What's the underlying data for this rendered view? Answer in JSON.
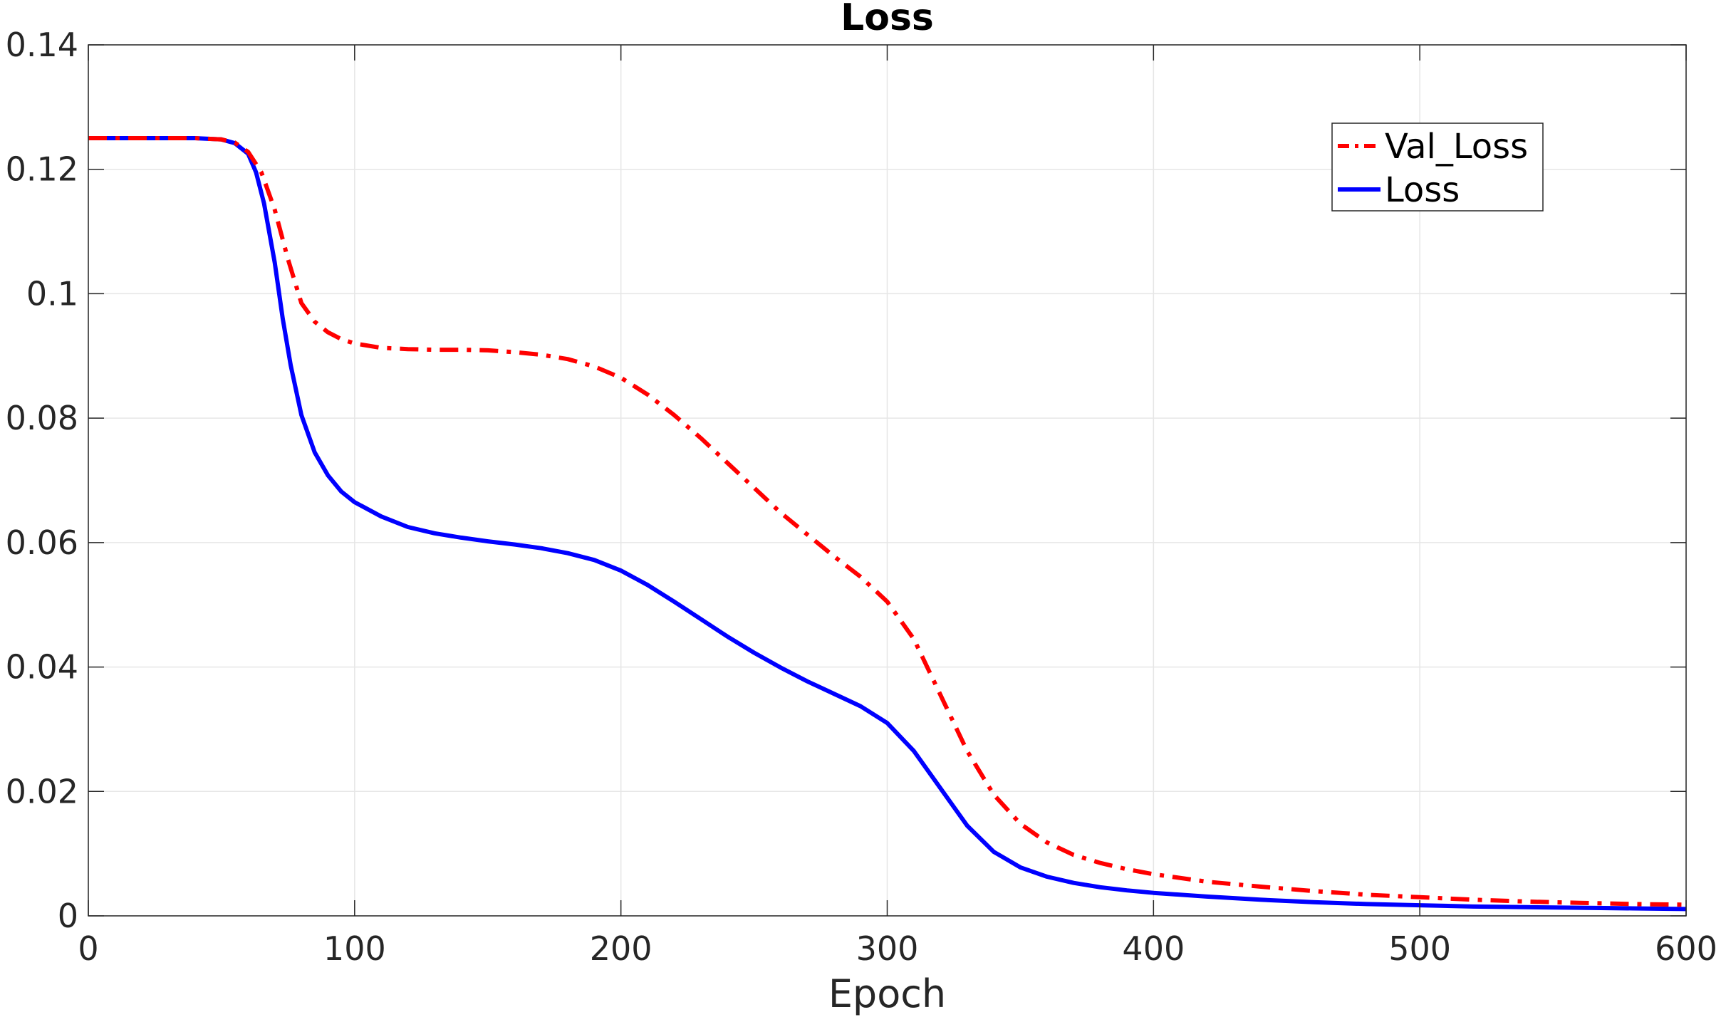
{
  "chart_data": {
    "type": "line",
    "title": "Loss",
    "xlabel": "Epoch",
    "ylabel": "",
    "xlim": [
      0,
      600
    ],
    "ylim": [
      0,
      0.14
    ],
    "xticks": [
      0,
      100,
      200,
      300,
      400,
      500,
      600
    ],
    "xtick_labels": [
      "0",
      "100",
      "200",
      "300",
      "400",
      "500",
      "600"
    ],
    "yticks": [
      0,
      0.02,
      0.04,
      0.06,
      0.08,
      0.1,
      0.12,
      0.14
    ],
    "ytick_labels": [
      "0",
      "0.02",
      "0.04",
      "0.06",
      "0.08",
      "0.1",
      "0.12",
      "0.14"
    ],
    "grid": true,
    "legend_position": "top-right",
    "series": [
      {
        "name": "Val_Loss",
        "color": "#ff0000",
        "line_style": "dash-dot",
        "x": [
          0,
          20,
          40,
          50,
          55,
          60,
          65,
          70,
          75,
          80,
          85,
          90,
          95,
          100,
          110,
          120,
          130,
          140,
          150,
          160,
          170,
          180,
          190,
          200,
          210,
          220,
          230,
          240,
          250,
          260,
          270,
          280,
          290,
          300,
          310,
          320,
          330,
          340,
          350,
          360,
          370,
          380,
          390,
          400,
          420,
          440,
          460,
          480,
          500,
          520,
          540,
          560,
          580,
          600
        ],
        "y": [
          0.125,
          0.125,
          0.125,
          0.1248,
          0.1243,
          0.1228,
          0.1195,
          0.1135,
          0.1055,
          0.0985,
          0.0955,
          0.0938,
          0.0927,
          0.092,
          0.0913,
          0.0911,
          0.091,
          0.091,
          0.0909,
          0.0906,
          0.0902,
          0.0895,
          0.0883,
          0.0865,
          0.0838,
          0.0805,
          0.0768,
          0.0728,
          0.0688,
          0.0648,
          0.0613,
          0.0578,
          0.0545,
          0.0505,
          0.0445,
          0.0355,
          0.0265,
          0.0195,
          0.0148,
          0.0118,
          0.0098,
          0.0085,
          0.0075,
          0.0067,
          0.0055,
          0.0047,
          0.004,
          0.0034,
          0.003,
          0.0026,
          0.0023,
          0.0021,
          0.0019,
          0.0018
        ]
      },
      {
        "name": "Loss",
        "color": "#0000ff",
        "line_style": "solid",
        "x": [
          0,
          20,
          40,
          50,
          55,
          60,
          63,
          66,
          70,
          73,
          76,
          80,
          85,
          90,
          95,
          100,
          110,
          120,
          130,
          140,
          150,
          160,
          170,
          180,
          190,
          200,
          210,
          220,
          230,
          240,
          250,
          260,
          270,
          280,
          290,
          300,
          310,
          320,
          330,
          340,
          350,
          360,
          370,
          380,
          390,
          400,
          420,
          440,
          460,
          480,
          500,
          520,
          540,
          560,
          580,
          600
        ],
        "y": [
          0.125,
          0.125,
          0.125,
          0.1248,
          0.1242,
          0.1225,
          0.1195,
          0.1145,
          0.105,
          0.096,
          0.0885,
          0.0805,
          0.0745,
          0.0708,
          0.0682,
          0.0665,
          0.0642,
          0.0625,
          0.0615,
          0.0608,
          0.0602,
          0.0597,
          0.0591,
          0.0583,
          0.0572,
          0.0555,
          0.0532,
          0.0505,
          0.0477,
          0.0449,
          0.0423,
          0.0399,
          0.0377,
          0.0357,
          0.0337,
          0.031,
          0.0265,
          0.0205,
          0.0145,
          0.0103,
          0.0078,
          0.0063,
          0.0053,
          0.0046,
          0.0041,
          0.0037,
          0.0031,
          0.0026,
          0.0022,
          0.0019,
          0.0017,
          0.0015,
          0.0014,
          0.0013,
          0.0012,
          0.0011
        ]
      }
    ]
  }
}
